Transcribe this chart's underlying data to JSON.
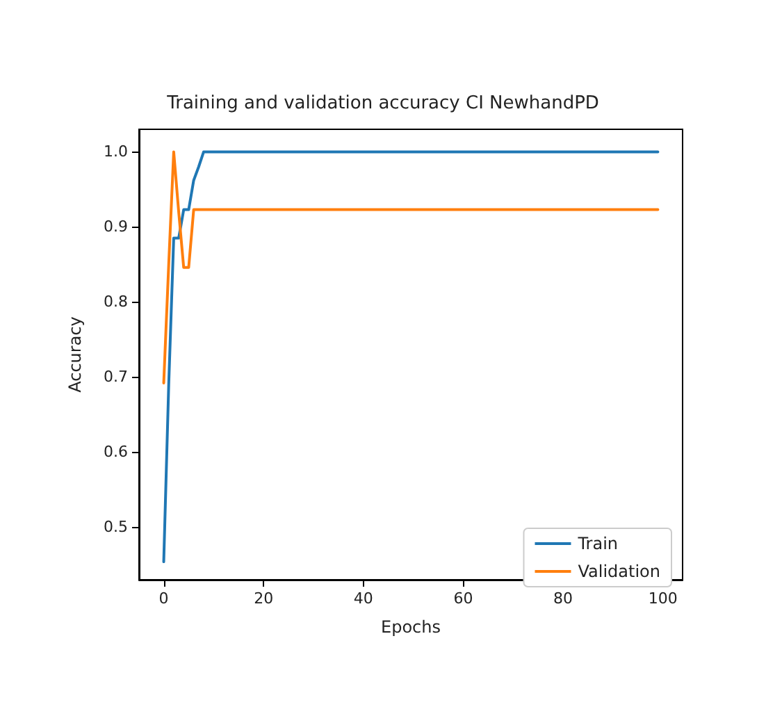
{
  "chart_data": {
    "type": "line",
    "title": "Training and validation accuracy CI NewhandPD",
    "xlabel": "Epochs",
    "ylabel": "Accuracy",
    "series": [
      {
        "name": "Train",
        "color": "#1f77b4",
        "x": [
          0,
          1,
          2,
          3,
          4,
          5,
          6,
          7,
          8,
          99
        ],
        "values": [
          0.454,
          0.69,
          0.885,
          0.885,
          0.923,
          0.923,
          0.962,
          0.98,
          1.0,
          1.0
        ]
      },
      {
        "name": "Validation",
        "color": "#ff7f0e",
        "x": [
          0,
          1,
          2,
          3,
          4,
          5,
          6,
          99
        ],
        "values": [
          0.692,
          0.85,
          1.0,
          0.92,
          0.846,
          0.846,
          0.923,
          0.923
        ]
      }
    ],
    "xlim": [
      -4.95,
      103.95
    ],
    "xticks": [
      0,
      20,
      40,
      60,
      80,
      100
    ],
    "ylim": [
      0.43,
      1.03
    ],
    "yticks": [
      {
        "value": 0.5,
        "label": "0.5"
      },
      {
        "value": 0.6,
        "label": "0.6"
      },
      {
        "value": 0.7,
        "label": "0.7"
      },
      {
        "value": 0.8,
        "label": "0.8"
      },
      {
        "value": 0.9,
        "label": "0.9"
      },
      {
        "value": 1.0,
        "label": "1.0"
      }
    ],
    "grid": false,
    "legend": "bottom right",
    "marker": "none",
    "line_style": "solid"
  }
}
